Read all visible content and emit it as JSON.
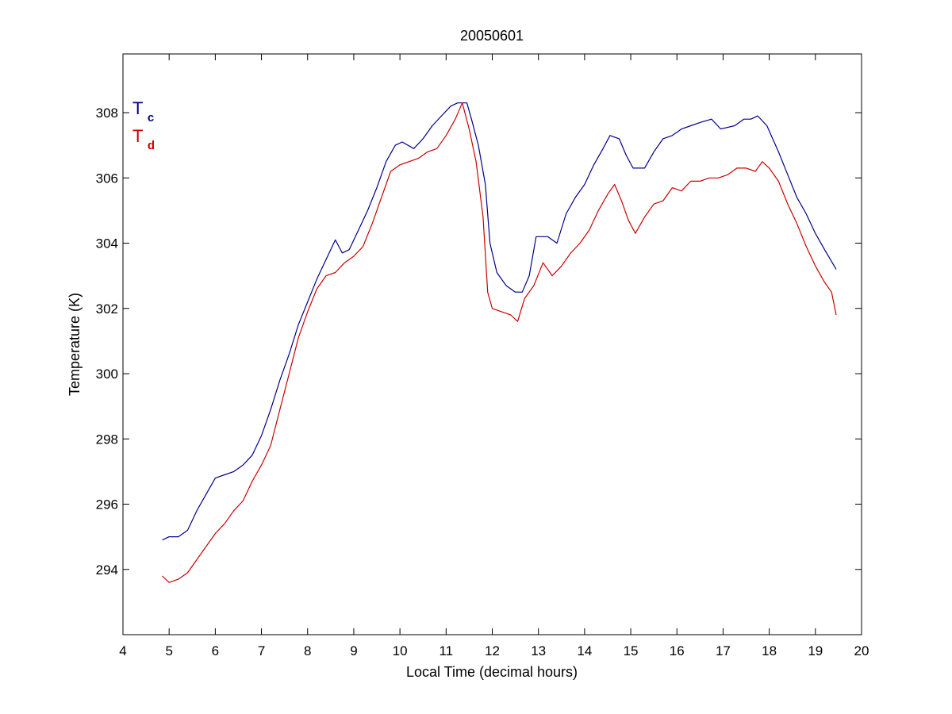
{
  "chart_data": {
    "type": "line",
    "title": "20050601",
    "xlabel": "Local Time (decimal hours)",
    "ylabel": "Temperature (K)",
    "xlim": [
      4,
      20
    ],
    "ylim": [
      292,
      309.8
    ],
    "xticks": [
      4,
      5,
      6,
      7,
      8,
      9,
      10,
      11,
      12,
      13,
      14,
      15,
      16,
      17,
      18,
      19,
      20
    ],
    "yticks": [
      294,
      296,
      298,
      300,
      302,
      304,
      306,
      308
    ],
    "grid": false,
    "legend_placement": "top-left",
    "series": [
      {
        "name": "T",
        "subscript": "c",
        "color": "#00008b",
        "x": [
          4.85,
          5.0,
          5.2,
          5.4,
          5.6,
          5.8,
          6.0,
          6.2,
          6.4,
          6.6,
          6.8,
          7.0,
          7.2,
          7.4,
          7.6,
          7.8,
          8.0,
          8.2,
          8.4,
          8.6,
          8.75,
          8.9,
          9.1,
          9.3,
          9.5,
          9.7,
          9.9,
          10.05,
          10.3,
          10.5,
          10.7,
          10.9,
          11.1,
          11.25,
          11.45,
          11.55,
          11.7,
          11.85,
          11.95,
          12.1,
          12.3,
          12.5,
          12.65,
          12.8,
          12.95,
          13.2,
          13.4,
          13.6,
          13.8,
          14.0,
          14.2,
          14.4,
          14.55,
          14.75,
          14.9,
          15.05,
          15.3,
          15.5,
          15.7,
          15.9,
          16.1,
          16.3,
          16.5,
          16.75,
          16.95,
          17.25,
          17.45,
          17.6,
          17.75,
          17.95,
          18.2,
          18.4,
          18.6,
          18.8,
          19.0,
          19.2,
          19.45
        ],
        "y": [
          294.9,
          295.0,
          295.0,
          295.2,
          295.8,
          296.3,
          296.8,
          296.9,
          297.0,
          297.2,
          297.5,
          298.1,
          298.9,
          299.8,
          300.6,
          301.5,
          302.2,
          302.9,
          303.5,
          304.1,
          303.7,
          303.8,
          304.4,
          305.0,
          305.7,
          306.5,
          307.0,
          307.1,
          306.9,
          307.2,
          307.6,
          307.9,
          308.2,
          308.3,
          308.3,
          307.8,
          307.0,
          305.8,
          304.0,
          303.1,
          302.7,
          302.5,
          302.5,
          303.0,
          304.2,
          304.2,
          304.0,
          304.9,
          305.4,
          305.8,
          306.4,
          306.9,
          307.3,
          307.2,
          306.7,
          306.3,
          306.3,
          306.8,
          307.2,
          307.3,
          307.5,
          307.6,
          307.7,
          307.8,
          307.5,
          307.6,
          307.8,
          307.8,
          307.9,
          307.6,
          306.8,
          306.1,
          305.4,
          304.9,
          304.3,
          303.8,
          303.2
        ]
      },
      {
        "name": "T",
        "subscript": "d",
        "color": "#cc0000",
        "x": [
          4.85,
          5.0,
          5.2,
          5.4,
          5.6,
          5.8,
          6.0,
          6.2,
          6.4,
          6.6,
          6.8,
          7.0,
          7.2,
          7.4,
          7.6,
          7.8,
          8.0,
          8.2,
          8.4,
          8.6,
          8.8,
          9.0,
          9.2,
          9.4,
          9.6,
          9.8,
          10.0,
          10.2,
          10.4,
          10.6,
          10.8,
          11.0,
          11.2,
          11.35,
          11.5,
          11.65,
          11.8,
          11.9,
          12.0,
          12.2,
          12.4,
          12.55,
          12.7,
          12.9,
          13.1,
          13.3,
          13.5,
          13.7,
          13.9,
          14.1,
          14.3,
          14.5,
          14.65,
          14.8,
          14.95,
          15.1,
          15.3,
          15.5,
          15.7,
          15.9,
          16.1,
          16.3,
          16.5,
          16.7,
          16.9,
          17.1,
          17.3,
          17.5,
          17.7,
          17.85,
          18.0,
          18.2,
          18.4,
          18.6,
          18.8,
          19.0,
          19.2,
          19.35,
          19.45
        ],
        "y": [
          293.8,
          293.6,
          293.7,
          293.9,
          294.3,
          294.7,
          295.1,
          295.4,
          295.8,
          296.1,
          296.7,
          297.2,
          297.8,
          298.9,
          300.0,
          301.1,
          301.9,
          302.6,
          303.0,
          303.1,
          303.4,
          303.6,
          303.9,
          304.6,
          305.4,
          306.2,
          306.4,
          306.5,
          306.6,
          306.8,
          306.9,
          307.3,
          307.8,
          308.3,
          307.5,
          306.5,
          304.8,
          302.5,
          302.0,
          301.9,
          301.8,
          301.6,
          302.3,
          302.7,
          303.4,
          303.0,
          303.3,
          303.7,
          304.0,
          304.4,
          305.0,
          305.5,
          305.8,
          305.3,
          304.7,
          304.3,
          304.8,
          305.2,
          305.3,
          305.7,
          305.6,
          305.9,
          305.9,
          306.0,
          306.0,
          306.1,
          306.3,
          306.3,
          306.2,
          306.5,
          306.3,
          305.9,
          305.2,
          304.6,
          303.9,
          303.3,
          302.8,
          302.5,
          301.8
        ]
      }
    ]
  }
}
